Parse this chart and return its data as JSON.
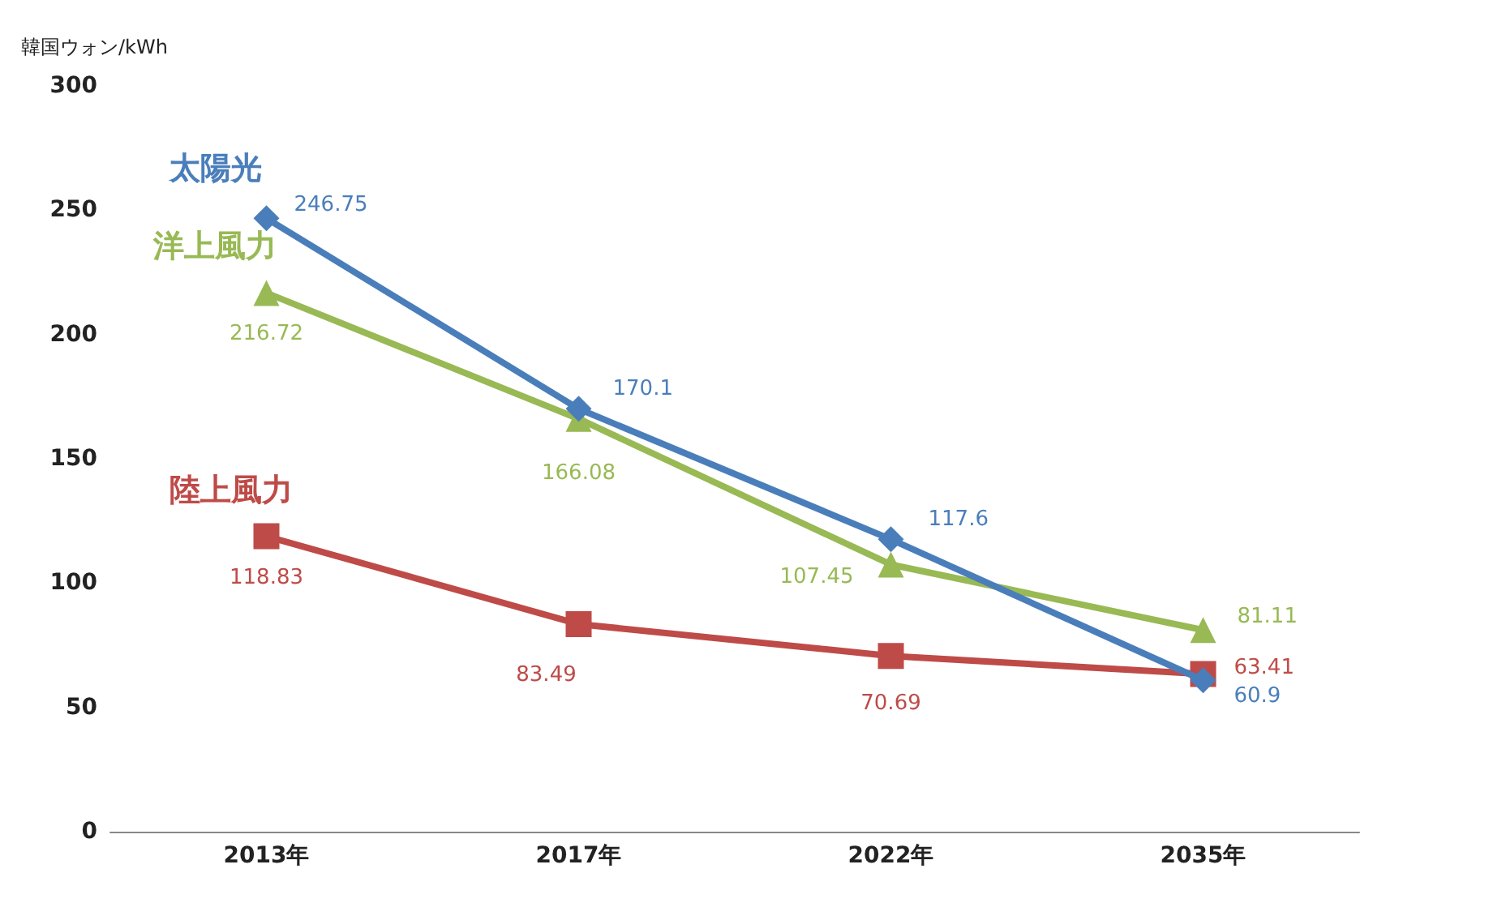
{
  "chart_data": {
    "type": "line",
    "ylabel": "韓国ウォン/kWh",
    "categories": [
      "2013年",
      "2017年",
      "2022年",
      "2035年"
    ],
    "series": [
      {
        "name": "太陽光",
        "color": "#4a7ebb",
        "marker": "diamond",
        "values": [
          246.75,
          170.1,
          117.6,
          60.9
        ]
      },
      {
        "name": "洋上風力",
        "color": "#98b954",
        "marker": "triangle",
        "values": [
          216.72,
          166.08,
          107.45,
          81.11
        ]
      },
      {
        "name": "陸上風力",
        "color": "#be4b48",
        "marker": "square",
        "values": [
          118.83,
          83.49,
          70.69,
          63.41
        ]
      }
    ],
    "ylim": [
      0,
      300
    ],
    "yticks": [
      0,
      50,
      100,
      150,
      200,
      250,
      300
    ],
    "grid": false,
    "legend": false,
    "data_labels": true,
    "line_style": "solid"
  }
}
